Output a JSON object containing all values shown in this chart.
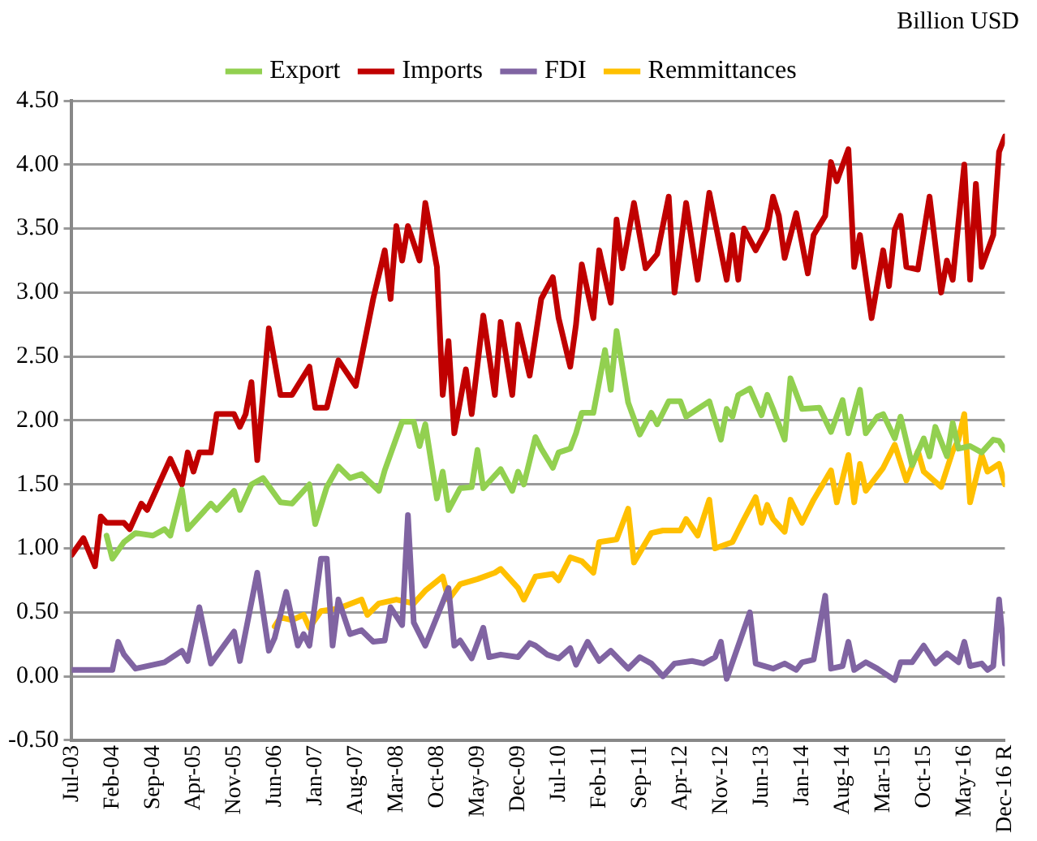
{
  "chart_data": {
    "type": "line",
    "ylabel": "Billion USD",
    "xlim": [
      "2003-07",
      "2016-12"
    ],
    "xticks": [
      {
        "value": "2003-07",
        "label": "Jul-03"
      },
      {
        "value": "2004-02",
        "label": "Feb-04"
      },
      {
        "value": "2004-09",
        "label": "Sep-04"
      },
      {
        "value": "2005-04",
        "label": "Apr-05"
      },
      {
        "value": "2005-11",
        "label": "Nov-05"
      },
      {
        "value": "2006-06",
        "label": "Jun-06"
      },
      {
        "value": "2007-01",
        "label": "Jan-07"
      },
      {
        "value": "2007-08",
        "label": "Aug-07"
      },
      {
        "value": "2008-03",
        "label": "Mar-08"
      },
      {
        "value": "2008-10",
        "label": "Oct-08"
      },
      {
        "value": "2009-05",
        "label": "May-09"
      },
      {
        "value": "2009-12",
        "label": "Dec-09"
      },
      {
        "value": "2010-07",
        "label": "Jul-10"
      },
      {
        "value": "2011-02",
        "label": "Feb-11"
      },
      {
        "value": "2011-09",
        "label": "Sep-11"
      },
      {
        "value": "2012-04",
        "label": "Apr-12"
      },
      {
        "value": "2012-11",
        "label": "Nov-12"
      },
      {
        "value": "2013-06",
        "label": "Jun-13"
      },
      {
        "value": "2014-01",
        "label": "Jan-14"
      },
      {
        "value": "2014-08",
        "label": "Aug-14"
      },
      {
        "value": "2015-03",
        "label": "Mar-15"
      },
      {
        "value": "2015-10",
        "label": "Oct-15"
      },
      {
        "value": "2016-05",
        "label": "May-16"
      },
      {
        "value": "2016-12",
        "label": "Dec-16 R"
      }
    ],
    "ylim": [
      -0.5,
      4.5
    ],
    "yticks": [
      {
        "value": -0.5,
        "label": "-0.50"
      },
      {
        "value": 0,
        "label": "0.00"
      },
      {
        "value": 0.5,
        "label": "0.50"
      },
      {
        "value": 1,
        "label": "1.00"
      },
      {
        "value": 1.5,
        "label": "1.50"
      },
      {
        "value": 2,
        "label": "2.00"
      },
      {
        "value": 2.5,
        "label": "2.50"
      },
      {
        "value": 3,
        "label": "3.00"
      },
      {
        "value": 3.5,
        "label": "3.50"
      },
      {
        "value": 4,
        "label": "4.00"
      },
      {
        "value": 4.5,
        "label": "4.50"
      }
    ],
    "grid": "y",
    "legend": "top",
    "line_style": "solid",
    "series": [
      {
        "name": "Export",
        "color": "#92d050",
        "x": [
          "2004-01",
          "2004-02",
          "2004-04",
          "2004-06",
          "2004-09",
          "2004-11",
          "2004-12",
          "2005-02",
          "2005-03",
          "2005-07",
          "2005-08",
          "2005-11",
          "2005-12",
          "2006-02",
          "2006-04",
          "2006-07",
          "2006-09",
          "2006-12",
          "2007-01",
          "2007-03",
          "2007-05",
          "2007-07",
          "2007-09",
          "2007-12",
          "2008-01",
          "2008-04",
          "2008-06",
          "2008-07",
          "2008-08",
          "2008-10",
          "2008-11",
          "2008-12",
          "2009-02",
          "2009-04",
          "2009-05",
          "2009-06",
          "2009-09",
          "2009-11",
          "2009-12",
          "2010-01",
          "2010-03",
          "2010-04",
          "2010-06",
          "2010-07",
          "2010-09",
          "2010-10",
          "2010-11",
          "2011-01",
          "2011-02",
          "2011-03",
          "2011-04",
          "2011-05",
          "2011-07",
          "2011-09",
          "2011-11",
          "2011-12",
          "2012-02",
          "2012-04",
          "2012-05",
          "2012-07",
          "2012-09",
          "2012-11",
          "2012-12",
          "2013-01",
          "2013-02",
          "2013-04",
          "2013-06",
          "2013-07",
          "2013-08",
          "2013-10",
          "2013-11",
          "2014-01",
          "2014-04",
          "2014-06",
          "2014-08",
          "2014-09",
          "2014-11",
          "2014-12",
          "2015-02",
          "2015-03",
          "2015-05",
          "2015-06",
          "2015-08",
          "2015-10",
          "2015-11",
          "2015-12",
          "2016-02",
          "2016-03",
          "2016-04",
          "2016-06",
          "2016-08",
          "2016-10",
          "2016-11",
          "2016-12"
        ],
        "values": [
          1.1,
          0.92,
          1.05,
          1.12,
          1.1,
          1.15,
          1.1,
          1.46,
          1.15,
          1.35,
          1.3,
          1.45,
          1.3,
          1.5,
          1.55,
          1.36,
          1.35,
          1.5,
          1.19,
          1.48,
          1.64,
          1.55,
          1.58,
          1.45,
          1.61,
          1.99,
          1.99,
          1.8,
          1.97,
          1.39,
          1.6,
          1.3,
          1.47,
          1.48,
          1.77,
          1.47,
          1.62,
          1.45,
          1.6,
          1.5,
          1.87,
          1.78,
          1.63,
          1.75,
          1.78,
          1.9,
          2.06,
          2.06,
          2.3,
          2.55,
          2.24,
          2.7,
          2.14,
          1.89,
          2.06,
          1.97,
          2.15,
          2.15,
          2.03,
          2.09,
          2.15,
          1.85,
          2.09,
          2.03,
          2.2,
          2.25,
          2.04,
          2.2,
          2.09,
          1.85,
          2.33,
          2.09,
          2.1,
          1.91,
          2.16,
          1.9,
          2.24,
          1.9,
          2.03,
          2.05,
          1.86,
          2.03,
          1.65,
          1.86,
          1.72,
          1.95,
          1.72,
          1.98,
          1.78,
          1.8,
          1.75,
          1.85,
          1.84,
          1.77
        ]
      },
      {
        "name": "Imports",
        "color": "#c00000",
        "x": [
          "2003-07",
          "2003-09",
          "2003-11",
          "2003-12",
          "2004-01",
          "2004-04",
          "2004-05",
          "2004-07",
          "2004-08",
          "2004-11",
          "2004-12",
          "2005-02",
          "2005-03",
          "2005-04",
          "2005-05",
          "2005-07",
          "2005-08",
          "2005-11",
          "2005-12",
          "2006-01",
          "2006-02",
          "2006-03",
          "2006-05",
          "2006-07",
          "2006-09",
          "2006-12",
          "2007-01",
          "2007-03",
          "2007-05",
          "2007-08",
          "2007-11",
          "2008-01",
          "2008-02",
          "2008-03",
          "2008-04",
          "2008-05",
          "2008-07",
          "2008-08",
          "2008-10",
          "2008-11",
          "2008-12",
          "2009-01",
          "2009-03",
          "2009-04",
          "2009-06",
          "2009-08",
          "2009-09",
          "2009-11",
          "2009-12",
          "2010-02",
          "2010-04",
          "2010-06",
          "2010-07",
          "2010-09",
          "2010-10",
          "2010-11",
          "2011-01",
          "2011-02",
          "2011-04",
          "2011-05",
          "2011-06",
          "2011-08",
          "2011-10",
          "2011-12",
          "2012-02",
          "2012-03",
          "2012-05",
          "2012-07",
          "2012-09",
          "2012-12",
          "2013-01",
          "2013-02",
          "2013-03",
          "2013-05",
          "2013-07",
          "2013-08",
          "2013-09",
          "2013-10",
          "2013-12",
          "2014-02",
          "2014-03",
          "2014-05",
          "2014-06",
          "2014-07",
          "2014-09",
          "2014-10",
          "2014-11",
          "2015-01",
          "2015-03",
          "2015-04",
          "2015-05",
          "2015-06",
          "2015-07",
          "2015-09",
          "2015-11",
          "2016-01",
          "2016-02",
          "2016-03",
          "2016-05",
          "2016-06",
          "2016-07",
          "2016-08",
          "2016-10",
          "2016-11",
          "2016-12"
        ],
        "values": [
          0.95,
          1.08,
          0.86,
          1.25,
          1.2,
          1.2,
          1.15,
          1.35,
          1.3,
          1.6,
          1.7,
          1.5,
          1.75,
          1.6,
          1.75,
          1.75,
          2.05,
          2.05,
          1.95,
          2.05,
          2.3,
          1.69,
          2.72,
          2.2,
          2.2,
          2.42,
          2.1,
          2.1,
          2.47,
          2.27,
          2.95,
          3.33,
          2.95,
          3.52,
          3.25,
          3.52,
          3.25,
          3.7,
          3.2,
          2.2,
          2.62,
          1.9,
          2.4,
          2.05,
          2.82,
          2.2,
          2.77,
          2.2,
          2.75,
          2.35,
          2.95,
          3.12,
          2.8,
          2.42,
          2.75,
          3.22,
          2.8,
          3.33,
          2.92,
          3.57,
          3.19,
          3.7,
          3.19,
          3.3,
          3.75,
          3.0,
          3.7,
          3.1,
          3.78,
          3.1,
          3.45,
          3.1,
          3.5,
          3.33,
          3.5,
          3.75,
          3.6,
          3.27,
          3.62,
          3.15,
          3.45,
          3.6,
          4.02,
          3.87,
          4.12,
          3.2,
          3.45,
          2.8,
          3.33,
          3.05,
          3.49,
          3.6,
          3.2,
          3.18,
          3.75,
          3.0,
          3.25,
          3.1,
          4.0,
          3.1,
          3.85,
          3.2,
          3.45,
          4.1,
          4.22
        ]
      },
      {
        "name": "FDI",
        "color": "#8064a2",
        "x": [
          "2003-07",
          "2004-02",
          "2004-03",
          "2004-04",
          "2004-06",
          "2004-11",
          "2005-02",
          "2005-03",
          "2005-05",
          "2005-07",
          "2005-11",
          "2005-12",
          "2006-03",
          "2006-05",
          "2006-06",
          "2006-08",
          "2006-10",
          "2006-11",
          "2006-12",
          "2007-02",
          "2007-03",
          "2007-04",
          "2007-05",
          "2007-07",
          "2007-09",
          "2007-11",
          "2008-01",
          "2008-02",
          "2008-04",
          "2008-05",
          "2008-06",
          "2008-08",
          "2008-12",
          "2009-01",
          "2009-02",
          "2009-04",
          "2009-06",
          "2009-07",
          "2009-09",
          "2009-12",
          "2010-02",
          "2010-03",
          "2010-05",
          "2010-07",
          "2010-09",
          "2010-10",
          "2010-12",
          "2011-02",
          "2011-04",
          "2011-07",
          "2011-09",
          "2011-11",
          "2012-01",
          "2012-03",
          "2012-06",
          "2012-08",
          "2012-10",
          "2012-11",
          "2012-12",
          "2013-04",
          "2013-05",
          "2013-08",
          "2013-10",
          "2013-12",
          "2014-01",
          "2014-03",
          "2014-05",
          "2014-06",
          "2014-08",
          "2014-09",
          "2014-10",
          "2014-12",
          "2015-02",
          "2015-05",
          "2015-06",
          "2015-08",
          "2015-10",
          "2015-12",
          "2016-02",
          "2016-04",
          "2016-05",
          "2016-06",
          "2016-08",
          "2016-09",
          "2016-10",
          "2016-11",
          "2016-12"
        ],
        "values": [
          0.05,
          0.05,
          0.27,
          0.17,
          0.06,
          0.11,
          0.2,
          0.12,
          0.54,
          0.1,
          0.35,
          0.12,
          0.81,
          0.2,
          0.3,
          0.66,
          0.24,
          0.33,
          0.24,
          0.92,
          0.92,
          0.24,
          0.6,
          0.33,
          0.36,
          0.27,
          0.28,
          0.54,
          0.4,
          1.26,
          0.42,
          0.24,
          0.69,
          0.24,
          0.28,
          0.14,
          0.38,
          0.15,
          0.17,
          0.15,
          0.26,
          0.24,
          0.17,
          0.14,
          0.22,
          0.09,
          0.27,
          0.12,
          0.2,
          0.06,
          0.15,
          0.1,
          0.0,
          0.1,
          0.12,
          0.1,
          0.15,
          0.27,
          -0.02,
          0.5,
          0.1,
          0.06,
          0.1,
          0.05,
          0.11,
          0.13,
          0.63,
          0.06,
          0.08,
          0.27,
          0.05,
          0.11,
          0.06,
          -0.03,
          0.11,
          0.11,
          0.24,
          0.1,
          0.18,
          0.11,
          0.27,
          0.08,
          0.1,
          0.05,
          0.08,
          0.6,
          0.1
        ]
      },
      {
        "name": "Remmittances",
        "color": "#ffc000",
        "x": [
          "2006-06",
          "2006-07",
          "2006-09",
          "2006-11",
          "2006-12",
          "2007-02",
          "2007-05",
          "2007-09",
          "2007-10",
          "2007-12",
          "2008-03",
          "2008-06",
          "2008-08",
          "2008-11",
          "2008-12",
          "2009-02",
          "2009-05",
          "2009-08",
          "2009-09",
          "2009-12",
          "2010-01",
          "2010-03",
          "2010-06",
          "2010-07",
          "2010-09",
          "2010-11",
          "2011-01",
          "2011-02",
          "2011-05",
          "2011-07",
          "2011-08",
          "2011-11",
          "2012-01",
          "2012-04",
          "2012-05",
          "2012-07",
          "2012-09",
          "2012-10",
          "2013-01",
          "2013-03",
          "2013-05",
          "2013-06",
          "2013-07",
          "2013-08",
          "2013-10",
          "2013-11",
          "2014-01",
          "2014-03",
          "2014-06",
          "2014-07",
          "2014-09",
          "2014-10",
          "2014-11",
          "2014-12",
          "2015-03",
          "2015-05",
          "2015-07",
          "2015-09",
          "2015-10",
          "2016-01",
          "2016-03",
          "2016-04",
          "2016-05",
          "2016-06",
          "2016-08",
          "2016-09",
          "2016-11",
          "2016-12"
        ],
        "values": [
          0.39,
          0.46,
          0.44,
          0.48,
          0.38,
          0.51,
          0.53,
          0.6,
          0.48,
          0.57,
          0.6,
          0.57,
          0.67,
          0.78,
          0.6,
          0.72,
          0.76,
          0.81,
          0.84,
          0.69,
          0.6,
          0.78,
          0.8,
          0.75,
          0.93,
          0.9,
          0.81,
          1.05,
          1.07,
          1.31,
          0.89,
          1.12,
          1.14,
          1.14,
          1.23,
          1.1,
          1.38,
          1.0,
          1.05,
          1.23,
          1.4,
          1.2,
          1.34,
          1.23,
          1.13,
          1.38,
          1.2,
          1.38,
          1.61,
          1.36,
          1.73,
          1.36,
          1.66,
          1.45,
          1.63,
          1.81,
          1.53,
          1.76,
          1.6,
          1.48,
          1.76,
          1.85,
          2.05,
          1.36,
          1.73,
          1.6,
          1.66,
          1.5
        ]
      }
    ]
  }
}
